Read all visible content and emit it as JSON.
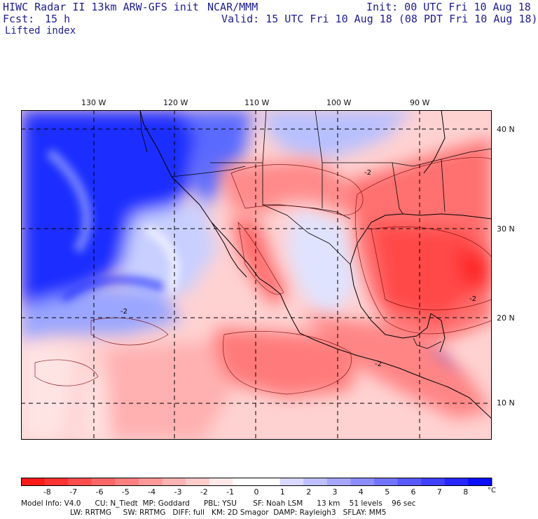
{
  "header": {
    "model_line": "HIWC Radar II 13km ARW-GFS init",
    "org": "NCAR/MMM",
    "init": "Init: 00 UTC Fri 10 Aug 18",
    "fcst_label": "Fcst:",
    "fcst_value": "15 h",
    "valid": "Valid: 15 UTC Fri 10 Aug 18 (08 PDT Fri 10 Aug 18)",
    "field": "Lifted index"
  },
  "map": {
    "longitude_labels": [
      "130 W",
      "120 W",
      "110 W",
      "100 W",
      "90 W"
    ],
    "latitude_labels": [
      "40 N",
      "30 N",
      "20 N",
      "10 N"
    ],
    "contour_labels": [
      "-2",
      "-2",
      "-2",
      "-2"
    ]
  },
  "colorbar": {
    "labels": [
      "-8",
      "-7",
      "-6",
      "-5",
      "-4",
      "-3",
      "-2",
      "-1",
      "0",
      "1",
      "2",
      "3",
      "4",
      "5",
      "6",
      "7",
      "8"
    ],
    "unit": "°C",
    "colors": [
      "#ff1a1a",
      "#ff3333",
      "#ff4d4d",
      "#ff6666",
      "#ff7f7f",
      "#ff9999",
      "#ffb3b3",
      "#ffcccc",
      "#ffe8e8",
      "#ffffff",
      "#ffffff",
      "#d9d9ff",
      "#bfbfff",
      "#a6a6ff",
      "#8c8cff",
      "#7373ff",
      "#5959ff",
      "#3f3fff",
      "#2626ff",
      "#0d0dff"
    ]
  },
  "footer": {
    "line1": "Model Info: V4.0      CU: N_Tiedt  MP: Goddard      PBL: YSU       SF: Noah LSM      13 km    51 levels    96 sec",
    "line2": "LW: RRTMG     SW: RRTMG   DIFF: full   KM: 2D Smagor  DAMP: Rayleigh3   SFLAY: MM5"
  }
}
